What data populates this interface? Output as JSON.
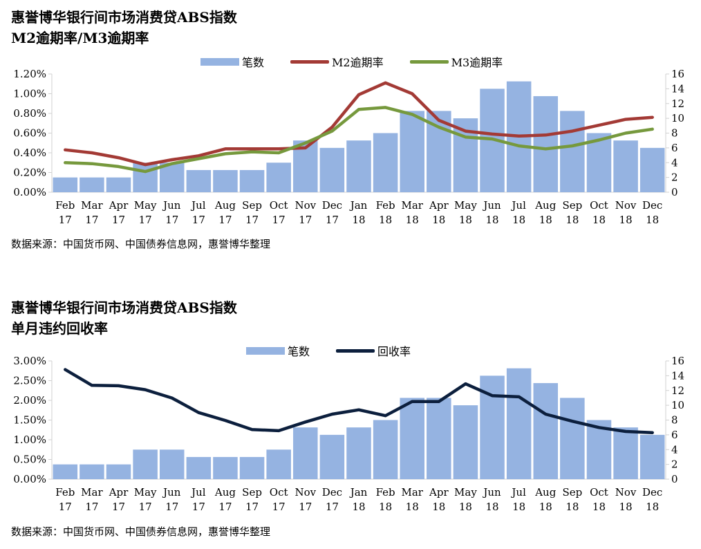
{
  "colors": {
    "bar": "#95b3e1",
    "m2": "#a33a35",
    "m3": "#76993d",
    "recovery": "#0c1f3d",
    "axis": "#d0d0d0"
  },
  "charts": [
    {
      "title_line1": "惠誉博华银行间市场消费贷ABS指数",
      "title_line2": "M2逾期率/M3逾期率",
      "legend": {
        "bars": "笔数",
        "line1": "M2逾期率",
        "line2": "M3逾期率"
      },
      "source": "数据来源：中国货币网、中国债券信息网，惠誉博华整理"
    },
    {
      "title_line1": "惠誉博华银行间市场消费贷ABS指数",
      "title_line2": "单月违约回收率",
      "legend": {
        "bars": "笔数",
        "line1": "回收率"
      },
      "source": "数据来源：中国货币网、中国债券信息网，惠誉博华整理"
    }
  ],
  "chart_data": [
    {
      "type": "bar",
      "categories": [
        "Feb 17",
        "Mar 17",
        "Apr 17",
        "May 17",
        "Jun 17",
        "Jul 17",
        "Aug 17",
        "Sep 17",
        "Oct 17",
        "Nov 17",
        "Dec 17",
        "Jan 18",
        "Feb 18",
        "Mar 18",
        "Apr 18",
        "May 18",
        "Jun 18",
        "Jul 18",
        "Aug 18",
        "Sep 18",
        "Oct 18",
        "Nov 18",
        "Dec 18"
      ],
      "series": [
        {
          "name": "笔数",
          "axis": "right",
          "kind": "bar",
          "values": [
            2,
            2,
            2,
            4,
            4,
            3,
            3,
            3,
            4,
            7,
            6,
            7,
            8,
            11,
            11,
            10,
            14,
            15,
            13,
            11,
            8,
            7,
            6
          ]
        },
        {
          "name": "M2逾期率",
          "axis": "left",
          "kind": "line",
          "values": [
            0.43,
            0.4,
            0.35,
            0.28,
            0.33,
            0.37,
            0.44,
            0.44,
            0.44,
            0.45,
            0.66,
            0.99,
            1.11,
            1.0,
            0.73,
            0.62,
            0.59,
            0.57,
            0.58,
            0.62,
            0.68,
            0.74,
            0.76
          ]
        },
        {
          "name": "M3逾期率",
          "axis": "left",
          "kind": "line",
          "values": [
            0.3,
            0.29,
            0.26,
            0.21,
            0.29,
            0.34,
            0.39,
            0.41,
            0.4,
            0.5,
            0.62,
            0.84,
            0.86,
            0.79,
            0.66,
            0.56,
            0.54,
            0.47,
            0.44,
            0.47,
            0.53,
            0.6,
            0.64
          ]
        }
      ],
      "y_left": {
        "min": 0,
        "max": 1.2,
        "ticks": [
          "0.00%",
          "0.20%",
          "0.40%",
          "0.60%",
          "0.80%",
          "1.00%",
          "1.20%"
        ]
      },
      "y_right": {
        "min": 0,
        "max": 16,
        "ticks": [
          "0",
          "2",
          "4",
          "6",
          "8",
          "10",
          "12",
          "14",
          "16"
        ]
      },
      "grid": false,
      "legend_position": "top"
    },
    {
      "type": "bar",
      "categories": [
        "Feb 17",
        "Mar 17",
        "Apr 17",
        "May 17",
        "Jun 17",
        "Jul 17",
        "Aug 17",
        "Sep 17",
        "Oct 17",
        "Nov 17",
        "Dec 17",
        "Jan 18",
        "Feb 18",
        "Mar 18",
        "Apr 18",
        "May 18",
        "Jun 18",
        "Jul 18",
        "Aug 18",
        "Sep 18",
        "Oct 18",
        "Nov 18",
        "Dec 18"
      ],
      "series": [
        {
          "name": "笔数",
          "axis": "right",
          "kind": "bar",
          "values": [
            2,
            2,
            2,
            4,
            4,
            3,
            3,
            3,
            4,
            7,
            6,
            7,
            8,
            11,
            11,
            10,
            14,
            15,
            13,
            11,
            8,
            7,
            6
          ]
        },
        {
          "name": "回收率",
          "axis": "left",
          "kind": "line",
          "values": [
            2.78,
            2.38,
            2.37,
            2.27,
            2.06,
            1.69,
            1.49,
            1.26,
            1.23,
            1.45,
            1.65,
            1.76,
            1.61,
            1.97,
            1.97,
            2.42,
            2.12,
            2.09,
            1.65,
            1.47,
            1.31,
            1.21,
            1.18
          ]
        }
      ],
      "y_left": {
        "min": 0,
        "max": 3.0,
        "ticks": [
          "0.00%",
          "0.50%",
          "1.00%",
          "1.50%",
          "2.00%",
          "2.50%",
          "3.00%"
        ]
      },
      "y_right": {
        "min": 0,
        "max": 16,
        "ticks": [
          "0",
          "2",
          "4",
          "6",
          "8",
          "10",
          "12",
          "14",
          "16"
        ]
      },
      "grid": false,
      "legend_position": "top"
    }
  ]
}
